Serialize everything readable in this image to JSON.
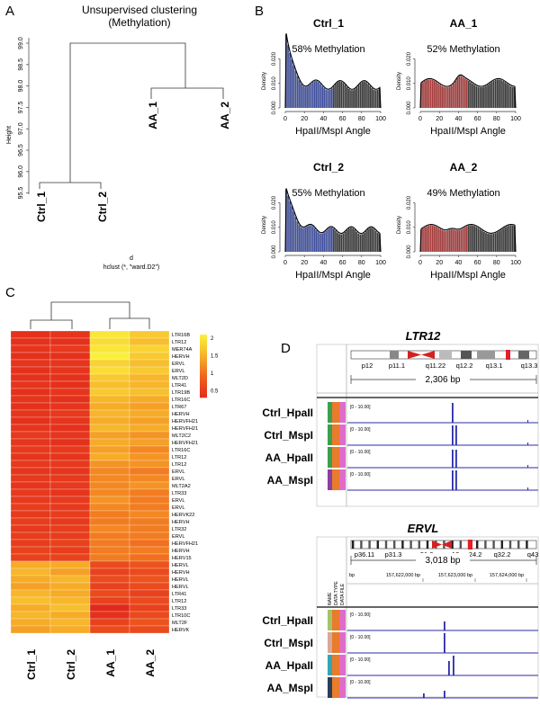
{
  "panels": {
    "a": {
      "letter": "A",
      "title_line1": "Unsupervised clustering",
      "title_line2": "(Methylation)",
      "ylabel": "Height",
      "yticks": [
        "99.0",
        "98.5",
        "98.0",
        "97.5",
        "97.0",
        "96.5",
        "96.0",
        "95.5"
      ],
      "leaves": [
        "Ctrl_1",
        "Ctrl_2",
        "AA_1",
        "AA_2"
      ],
      "xlabel": "d",
      "caption": "hclust (*, \"ward.D2\")"
    },
    "b": {
      "letter": "B",
      "ylabel": "Density",
      "xlabel": "HpaII/MspI Angle",
      "yticks": [
        "0.000",
        "0.010",
        "0.020"
      ],
      "xticks": [
        "0",
        "20",
        "40",
        "60",
        "80",
        "100"
      ],
      "plots": [
        {
          "title": "Ctrl_1",
          "label": "58% Methylation",
          "color": "#3f4fa0"
        },
        {
          "title": "AA_1",
          "label": "52% Methylation",
          "color": "#a93a3a"
        },
        {
          "title": "Ctrl_2",
          "label": "55% Methylation",
          "color": "#3f4fa0"
        },
        {
          "title": "AA_2",
          "label": "49% Methylation",
          "color": "#a93a3a"
        }
      ]
    },
    "c": {
      "letter": "C",
      "rows": [
        "LTR16B",
        "LTR12",
        "MER74A",
        "HERVH",
        "ERVL",
        "ERVL",
        "MLT2D",
        "LTR41",
        "LTR19B",
        "LTR16C",
        "LTR67",
        "HERVH",
        "HERVFH21",
        "HERVFH21",
        "MLT2C2",
        "HERVFH21",
        "LTR16C",
        "LTR12",
        "LTR12",
        "ERVL",
        "ERVL",
        "MLT2A2",
        "LTR33",
        "ERVL",
        "ERVL",
        "HERVK22",
        "HERVH",
        "LTR32",
        "ERVL",
        "HERVFH21",
        "HERVH",
        "HERV15",
        "HERVL",
        "HERVH",
        "HERVL",
        "HERVL",
        "LTR41",
        "LTR12",
        "LTR33",
        "LTR10C",
        "MLT2F",
        "HERVK"
      ],
      "columns": [
        "Ctrl_1",
        "Ctrl_2",
        "AA_1",
        "AA_2"
      ],
      "legend_ticks": [
        "2",
        "1.5",
        "1",
        "0.5"
      ]
    },
    "d": {
      "letter": "D",
      "top": {
        "title": "LTR12",
        "bands": [
          "p12",
          "p11.1",
          "q11.22",
          "q12.2",
          "q13.1",
          "q13.3"
        ],
        "span": "2,306 bp",
        "range": "[0 - 10.00]",
        "tracks": [
          "Ctrl_HpaII",
          "Ctrl_MspI",
          "AA_HpaII",
          "AA_MspI"
        ]
      },
      "bottom": {
        "title": "ERVL",
        "bands": [
          "p36.11",
          "p31.3",
          "p21.2",
          "q12",
          "q24.2",
          "q32.2",
          "q43"
        ],
        "span": "3,018 bp",
        "coords": [
          "bp",
          "157,622,000 bp",
          "157,623,000 bp",
          "157,624,000 bp"
        ],
        "side_labels": [
          "NAME",
          "DATA TYPE",
          "DATA FILE"
        ],
        "range": "[0 - 10.00]",
        "tracks": [
          "Ctrl_HpaII",
          "Ctrl_MspI",
          "AA_HpaII",
          "AA_MspI"
        ]
      }
    }
  },
  "heatmap_values": [
    [
      0.4,
      0.45,
      2.2,
      1.9
    ],
    [
      0.4,
      0.4,
      2.1,
      1.8
    ],
    [
      0.45,
      0.5,
      2.2,
      2.0
    ],
    [
      0.4,
      0.4,
      2.3,
      1.9
    ],
    [
      0.45,
      0.45,
      2.0,
      1.8
    ],
    [
      0.4,
      0.45,
      2.1,
      1.9
    ],
    [
      0.4,
      0.4,
      1.9,
      1.7
    ],
    [
      0.45,
      0.4,
      1.8,
      1.7
    ],
    [
      0.4,
      0.45,
      1.9,
      1.8
    ],
    [
      0.45,
      0.4,
      1.7,
      1.6
    ],
    [
      0.4,
      0.45,
      1.6,
      1.5
    ],
    [
      0.45,
      0.5,
      1.7,
      1.6
    ],
    [
      0.4,
      0.45,
      1.6,
      1.5
    ],
    [
      0.45,
      0.4,
      1.7,
      1.6
    ],
    [
      0.5,
      0.45,
      1.5,
      1.4
    ],
    [
      0.45,
      0.4,
      1.6,
      1.5
    ],
    [
      0.5,
      0.5,
      1.5,
      1.3
    ],
    [
      0.45,
      0.45,
      1.6,
      1.4
    ],
    [
      0.5,
      0.5,
      1.4,
      1.4
    ],
    [
      0.45,
      0.45,
      1.3,
      1.2
    ],
    [
      0.5,
      0.5,
      1.3,
      1.3
    ],
    [
      0.45,
      0.5,
      1.3,
      1.4
    ],
    [
      0.5,
      0.45,
      1.3,
      1.2
    ],
    [
      0.5,
      0.5,
      1.4,
      1.2
    ],
    [
      0.55,
      0.5,
      1.3,
      1.2
    ],
    [
      0.5,
      0.55,
      1.2,
      1.3
    ],
    [
      0.55,
      0.5,
      1.2,
      1.2
    ],
    [
      0.5,
      0.55,
      1.3,
      1.2
    ],
    [
      0.55,
      0.55,
      1.2,
      1.2
    ],
    [
      0.55,
      0.6,
      1.2,
      1.1
    ],
    [
      0.6,
      0.55,
      1.2,
      1.2
    ],
    [
      0.6,
      0.6,
      1.2,
      1.1
    ],
    [
      1.6,
      1.6,
      0.7,
      0.8
    ],
    [
      1.7,
      1.5,
      0.6,
      0.7
    ],
    [
      1.6,
      1.7,
      0.7,
      0.8
    ],
    [
      1.5,
      1.6,
      0.6,
      0.7
    ],
    [
      1.7,
      1.6,
      0.7,
      0.6
    ],
    [
      1.8,
      1.7,
      0.6,
      0.7
    ],
    [
      1.6,
      1.8,
      0.3,
      0.6
    ],
    [
      1.7,
      1.6,
      0.4,
      0.7
    ],
    [
      1.6,
      1.7,
      0.6,
      0.8
    ],
    [
      1.5,
      1.6,
      0.7,
      0.7
    ]
  ]
}
